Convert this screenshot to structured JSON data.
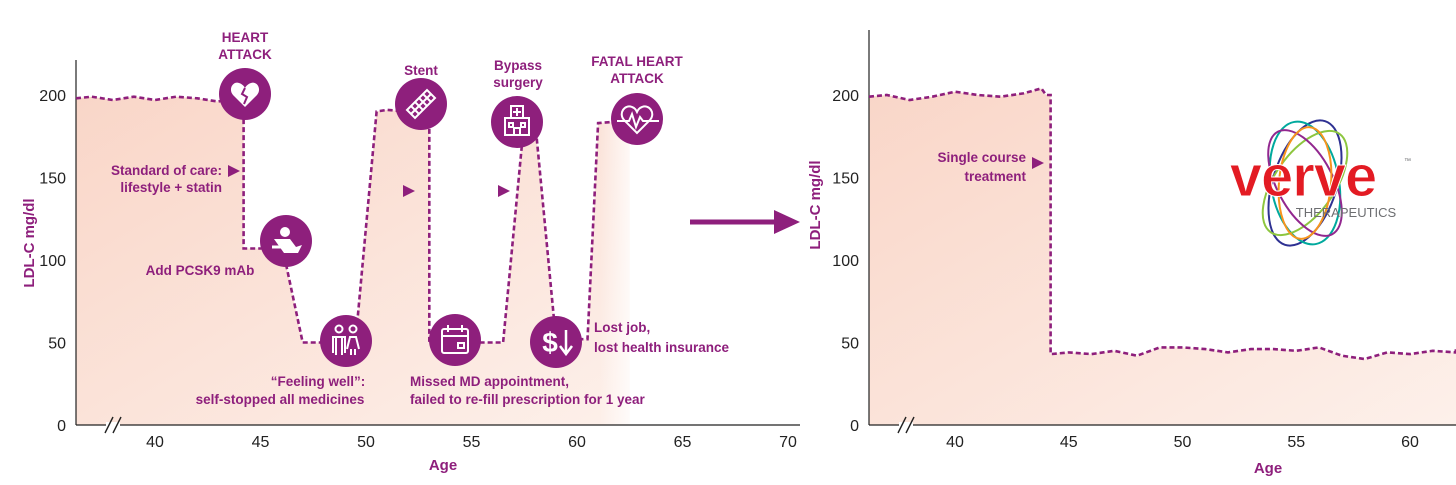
{
  "colors": {
    "accent": "#8e1f7c",
    "fill": "#fbe3da",
    "logo_red": "#e31b23",
    "logo_gray": "#6d6e71"
  },
  "chart_data": [
    {
      "type": "line",
      "xlabel": "Age",
      "ylabel": "LDL-C mg/dl",
      "xlim": [
        36,
        71
      ],
      "ylim": [
        0,
        220
      ],
      "xticks": [
        40,
        45,
        50,
        55,
        60,
        65,
        70
      ],
      "yticks": [
        0,
        50,
        100,
        150,
        200
      ],
      "axis_break": "//",
      "series": [
        {
          "x": [
            36,
            37,
            38,
            39,
            40,
            41,
            42,
            43,
            44,
            44.2,
            44.2,
            45,
            46,
            46,
            47,
            47,
            48,
            49,
            49.5,
            50.5,
            51,
            52,
            53,
            53,
            54,
            55,
            56,
            56.5,
            57.5,
            57.5,
            58,
            59,
            59.5,
            60.5,
            61,
            62,
            62.5
          ],
          "y": [
            198,
            199,
            197,
            199,
            197,
            199,
            198,
            196,
            199,
            199,
            107,
            107,
            108,
            110,
            50,
            50,
            50,
            49,
            50,
            190,
            191,
            190,
            188,
            50,
            50,
            50,
            50,
            50,
            185,
            186,
            186,
            52,
            52,
            52,
            183,
            184,
            184
          ]
        }
      ],
      "events": [
        {
          "age": 44.3,
          "ldl": 200,
          "icon": "broken-heart-icon",
          "label": [
            "HEART",
            "ATTACK"
          ]
        },
        {
          "age": 46.5,
          "ldl": 110,
          "icon": "injection-icon",
          "label": [
            "Add PCSK9 mAb"
          ]
        },
        {
          "age": 49.2,
          "ldl": 50,
          "icon": "people-icon",
          "label": [
            "“Feeling well”:",
            "self-stopped all medicines"
          ]
        },
        {
          "age": 52.4,
          "ldl": 190,
          "icon": "stent-icon",
          "label": [
            "Stent"
          ]
        },
        {
          "age": 54.5,
          "ldl": 50,
          "icon": "calendar-icon",
          "label": [
            "Missed MD appointment,",
            "failed to re-fill prescription for 1 year"
          ]
        },
        {
          "age": 57,
          "ldl": 185,
          "icon": "hospital-icon",
          "label": [
            "Bypass",
            "surgery"
          ]
        },
        {
          "age": 59.2,
          "ldl": 52,
          "icon": "dollar-down-icon",
          "label": [
            "Lost job,",
            "lost health insurance"
          ]
        },
        {
          "age": 62.2,
          "ldl": 184,
          "icon": "heart-monitor-icon",
          "label": [
            "FATAL HEART",
            "ATTACK"
          ]
        }
      ],
      "annotations": [
        {
          "text": [
            "Standard of care:",
            "lifestyle + statin"
          ]
        }
      ]
    },
    {
      "type": "line",
      "xlabel": "Age",
      "ylabel": "LDL-C mg/dl",
      "xlim": [
        36,
        64
      ],
      "ylim": [
        0,
        220
      ],
      "xticks": [
        40,
        45,
        50,
        55,
        60
      ],
      "yticks": [
        0,
        50,
        100,
        150,
        200
      ],
      "axis_break": "//",
      "series": [
        {
          "x": [
            36,
            37,
            38,
            39,
            40,
            41,
            42,
            43,
            43.8,
            44,
            44.2,
            44.2,
            45,
            46,
            47,
            48,
            49,
            50,
            51,
            52,
            53,
            54,
            55,
            56,
            57,
            58,
            59,
            60,
            61,
            62,
            63,
            64
          ],
          "y": [
            199,
            200,
            197,
            199,
            202,
            200,
            199,
            201,
            204,
            200,
            200,
            43,
            44,
            43,
            45,
            42,
            47,
            47,
            46,
            44,
            46,
            46,
            45,
            47,
            42,
            40,
            44,
            43,
            45,
            44,
            46,
            45
          ]
        }
      ],
      "annotations": [
        {
          "text": [
            "Single course",
            "treatment"
          ]
        }
      ]
    }
  ],
  "logo": {
    "word": "verve",
    "sub": "THERAPEUTICS",
    "tm": "™"
  }
}
